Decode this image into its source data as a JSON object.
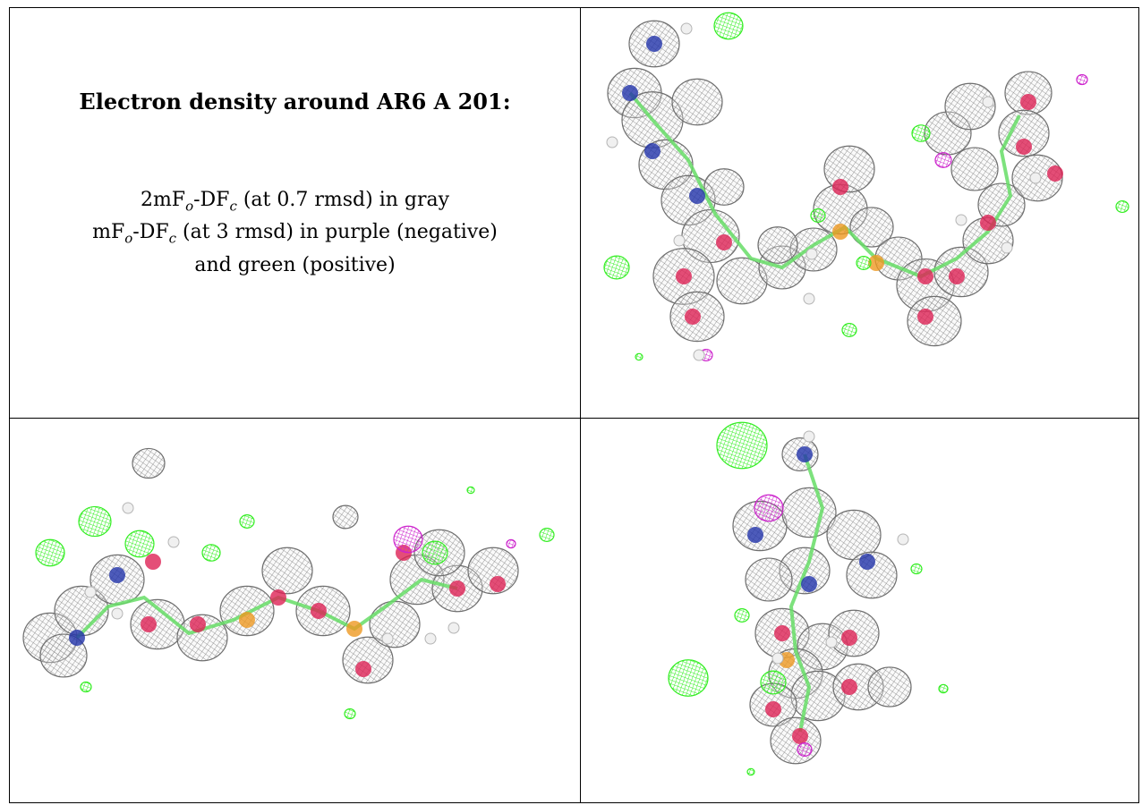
{
  "caption": {
    "title": "Electron density around AR6 A 201:",
    "line1": {
      "prefix": "2mF",
      "sub_o": "o",
      "mid": "-DF",
      "sub_c": "c",
      "rest": " (at 0.7 rmsd) in gray"
    },
    "line2": {
      "prefix": "mF",
      "sub_o": "o",
      "mid": "-DF",
      "sub_c": "c",
      "rest": " (at 3 rmsd) in purple (negative)"
    },
    "line3": "and green (positive)"
  },
  "colors": {
    "map_2fo_fc": "#9a9a9a",
    "diff_positive": "#33ee22",
    "diff_negative": "#cc22cc",
    "atom_nitrogen": "#2233aa",
    "atom_oxygen": "#dd2255",
    "atom_phosphorus": "#ee9922",
    "atom_carbon": "#66dd66",
    "atom_hydrogen": "#f0f0f0"
  },
  "views": [
    {
      "name": "view-top-right"
    },
    {
      "name": "view-bottom-left"
    },
    {
      "name": "view-bottom-right"
    }
  ]
}
